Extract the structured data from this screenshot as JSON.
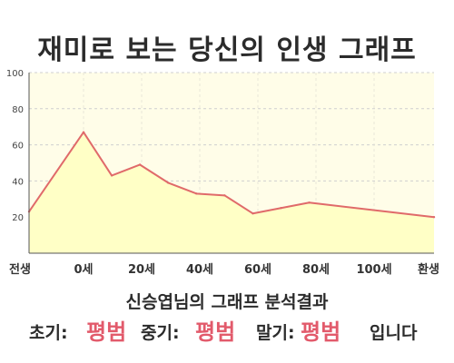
{
  "title": "재미로 보는 당신의 인생 그래프",
  "chart_data": {
    "type": "area",
    "x_categories": [
      "전생",
      "0세",
      "20세",
      "40세",
      "60세",
      "80세",
      "100세",
      "환생"
    ],
    "points": [
      {
        "x": "전생",
        "y": 23
      },
      {
        "x": "0세",
        "y": 67
      },
      {
        "x": "",
        "y": 43
      },
      {
        "x": "",
        "y": 49
      },
      {
        "x": "",
        "y": 39
      },
      {
        "x": "",
        "y": 33
      },
      {
        "x": "",
        "y": 32
      },
      {
        "x": "",
        "y": 22
      },
      {
        "x": "",
        "y": 25
      },
      {
        "x": "",
        "y": 28
      },
      {
        "x": "환생",
        "y": 20
      }
    ],
    "ylim": [
      0,
      100
    ],
    "yticks": [
      20,
      40,
      60,
      80,
      100
    ],
    "grid": true,
    "colors": {
      "fill": "#ffffc6",
      "plot_bg": "#fffde8",
      "line": "#e06a6a",
      "grid": "#cfcfcf"
    }
  },
  "summary": {
    "heading": "신승엽님의 그래프 분석결과",
    "early_label": "초기:",
    "early_value": "평범",
    "middle_label": "중기:",
    "middle_value": "평범",
    "late_label": "말기:",
    "late_value": "평범",
    "ending": "입니다"
  }
}
